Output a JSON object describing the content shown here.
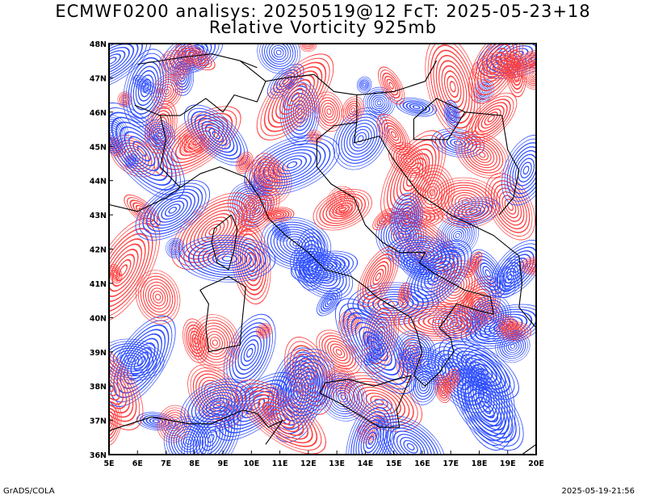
{
  "header": {
    "title_line1": "ECMWF0200 analisys: 20250519@12 FcT: 2025-05-23+18",
    "title_line2": "Relative Vorticity 925mb"
  },
  "map": {
    "lon_ticks": [
      "5E",
      "6E",
      "7E",
      "8E",
      "9E",
      "10E",
      "11E",
      "12E",
      "13E",
      "14E",
      "15E",
      "16E",
      "17E",
      "18E",
      "19E",
      "20E"
    ],
    "lat_ticks": [
      "36N",
      "37N",
      "38N",
      "39N",
      "40N",
      "41N",
      "42N",
      "43N",
      "44N",
      "45N",
      "46N",
      "47N",
      "48N"
    ],
    "lon_range": [
      5,
      20
    ],
    "lat_range": [
      36,
      48
    ],
    "colors": {
      "positive": "#ff4040",
      "negative": "#3050ff",
      "coastline": "#000000",
      "frame": "#000000"
    }
  },
  "footer": {
    "left": "GrADS/COLA",
    "right": "2025-05-19-21:56"
  }
}
